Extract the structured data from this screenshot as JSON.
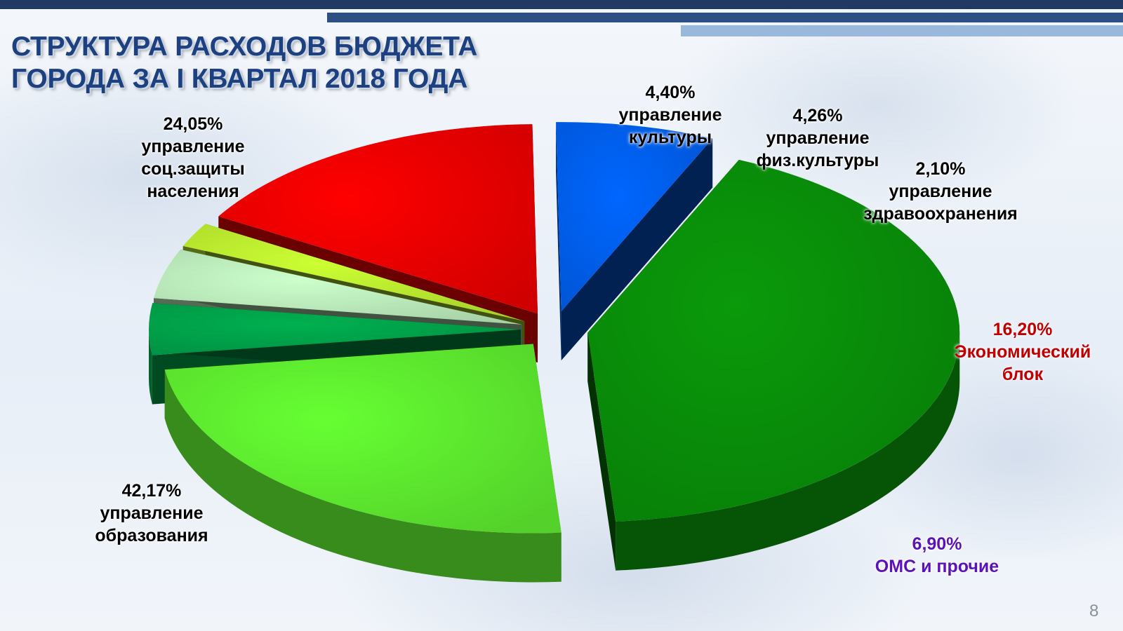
{
  "slide": {
    "title_line1": "СТРУКТУРА РАСХОДОВ БЮДЖЕТА",
    "title_line2": "ГОРОДА ЗА  I КВАРТАЛ 2018 ГОДА",
    "page_number": "8"
  },
  "chart_data": {
    "type": "pie",
    "title": "СТРУКТУРА РАСХОДОВ БЮДЖЕТА ГОРОДА ЗА  I КВАРТАЛ 2018 ГОДА",
    "legend": "none",
    "style": "3d-exploded",
    "slices": [
      {
        "name_lines": [
          "управление",
          "образования"
        ],
        "value": 42.17,
        "value_label": "42,17%",
        "color": "#0a9a0a",
        "label_color": "#000000"
      },
      {
        "name_lines": [
          "управление",
          "соц.защиты",
          "населения"
        ],
        "value": 24.05,
        "value_label": "24,05%",
        "color": "#66ff33",
        "label_color": "#000000"
      },
      {
        "name_lines": [
          "управление",
          "культуры"
        ],
        "value": 4.4,
        "value_label": "4,40%",
        "color": "#00b050",
        "label_color": "#000000"
      },
      {
        "name_lines": [
          "управление",
          "физ.культуры"
        ],
        "value": 4.26,
        "value_label": "4,26%",
        "color": "#ccffcc",
        "label_color": "#000000"
      },
      {
        "name_lines": [
          "управление",
          "здравоохранения"
        ],
        "value": 2.1,
        "value_label": "2,10%",
        "color": "#ccff33",
        "label_color": "#000000"
      },
      {
        "name_lines": [
          "Экономический",
          "блок"
        ],
        "value": 16.2,
        "value_label": "16,20%",
        "color": "#ff0000",
        "label_color": "#c00000"
      },
      {
        "name_lines": [
          "ОМС и прочие"
        ],
        "value": 6.9,
        "value_label": "6,90%",
        "color": "#0066ff",
        "label_color": "#5b12b8"
      }
    ]
  }
}
